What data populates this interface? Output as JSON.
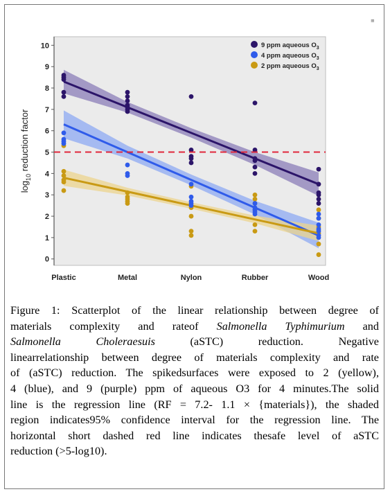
{
  "corner_mark": "≡",
  "chart_data": {
    "type": "scatter",
    "categories": [
      "Plastic",
      "Metal",
      "Nylon",
      "Rubber",
      "Wood"
    ],
    "ylabel_main": "log",
    "ylabel_sub": "10",
    "ylabel_rest": " reduction factor",
    "ylim": [
      -0.3,
      10.4
    ],
    "yticks": [
      0,
      1,
      2,
      3,
      4,
      5,
      6,
      7,
      8,
      9,
      10
    ],
    "safe_level": 5,
    "safe_level_color": "#e0263a",
    "legend_position": "top-right",
    "series": [
      {
        "name": "9 ppm aqueous O",
        "name_sub": "3",
        "color": "#2c1569",
        "band_color": "#8b7eb8",
        "fit_start": 8.3,
        "fit_end": 3.5,
        "ci_width": [
          0.55,
          0.25,
          0.22,
          0.3,
          0.55
        ],
        "points": [
          [
            1,
            [
              8.6,
              8.5,
              8.4,
              7.8,
              7.6
            ]
          ],
          [
            2,
            [
              7.8,
              7.6,
              7.4,
              7.2,
              7.1,
              7.0,
              6.9
            ]
          ],
          [
            3,
            [
              7.6,
              5.1,
              4.8,
              4.7,
              4.5
            ]
          ],
          [
            4,
            [
              7.3,
              5.1,
              4.7,
              4.6,
              4.3,
              4.0
            ]
          ],
          [
            5,
            [
              4.2,
              3.5,
              3.1,
              3.0,
              2.8,
              2.6
            ]
          ]
        ]
      },
      {
        "name": "4 ppm aqueous O",
        "name_sub": "3",
        "color": "#2f5bea",
        "band_color": "#8eaaf3",
        "fit_start": 6.3,
        "fit_end": 1.1,
        "ci_width": [
          0.65,
          0.3,
          0.25,
          0.32,
          0.6
        ],
        "points": [
          [
            1,
            [
              5.9,
              5.6,
              5.5,
              5.4
            ]
          ],
          [
            2,
            [
              4.4,
              4.0,
              3.9
            ]
          ],
          [
            3,
            [
              3.5,
              2.9,
              2.7,
              2.6,
              2.5
            ]
          ],
          [
            4,
            [
              2.6,
              2.4,
              2.3,
              2.2,
              2.1
            ]
          ],
          [
            5,
            [
              2.1,
              1.9,
              1.6,
              1.4,
              1.3,
              1.1,
              1.0
            ]
          ]
        ]
      },
      {
        "name": "2 ppm aqueous O",
        "name_sub": "3",
        "color": "#c99a14",
        "band_color": "#ecd48e",
        "fit_start": 3.8,
        "fit_end": 1.2,
        "ci_width": [
          0.38,
          0.18,
          0.15,
          0.18,
          0.36
        ],
        "points": [
          [
            1,
            [
              5.3,
              4.1,
              3.9,
              3.7,
              3.6,
              3.2
            ]
          ],
          [
            2,
            [
              3.1,
              2.9,
              2.8,
              2.7,
              2.6
            ]
          ],
          [
            3,
            [
              3.4,
              2.4,
              2.0,
              1.3,
              1.1
            ]
          ],
          [
            4,
            [
              3.0,
              2.8,
              2.6,
              2.3,
              1.6,
              1.3
            ]
          ],
          [
            5,
            [
              2.3,
              1.9,
              1.5,
              1.2,
              0.7,
              0.2
            ]
          ]
        ]
      }
    ]
  },
  "caption": {
    "line1_bold": "Figure 1",
    "line1_rest": ": Scatterplot of the linear relationship between degree of",
    "line2_a": "materials complexity and rateof ",
    "line2_it": "Salmonella Typhimurium",
    "line2_b": " and",
    "line3_it1": "Salmonella",
    "line3_it2": "Choleraesuis",
    "line3_a": "(aSTC)",
    "line3_b": "reduction.",
    "line3_c": "Negative",
    "line4": "linearrelationship between degree of materials complexity and rate",
    "line5": "of (aSTC) reduction. The spikedsurfaces were exposed to 2 (yellow),",
    "line6": "4 (blue), and 9 (purple) ppm of aqueous O3 for 4 minutes.The solid",
    "line7": "line is the regression line (RF = 7.2- 1.1 × {materials}), the shaded",
    "line8": "region indicates95% confidence interval for the regression line. The",
    "line9": "horizontal short dashed red line indicates thesafe level of aSTC",
    "line10": "reduction (>5-log10)."
  }
}
